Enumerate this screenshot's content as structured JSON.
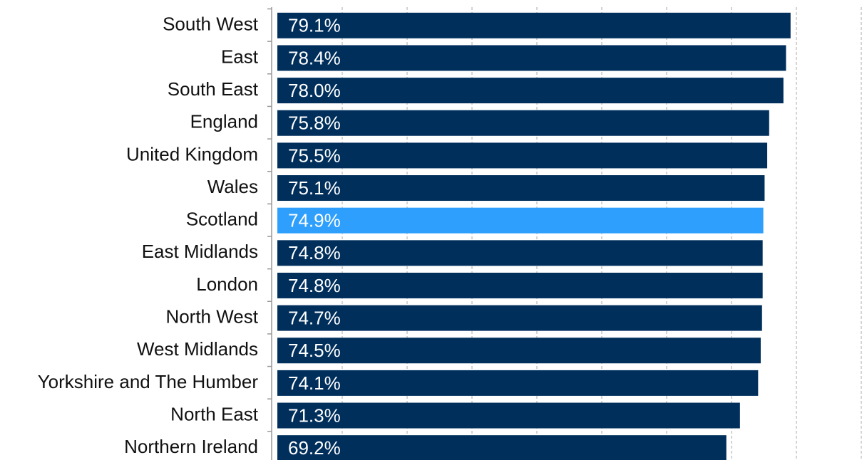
{
  "chart_data": {
    "type": "hbar",
    "categories": [
      "South West",
      "East",
      "South East",
      "England",
      "United Kingdom",
      "Wales",
      "Scotland",
      "East Midlands",
      "London",
      "North West",
      "West Midlands",
      "Yorkshire and The Humber",
      "North East",
      "Northern Ireland"
    ],
    "values": [
      79.1,
      78.4,
      78.0,
      75.8,
      75.5,
      75.1,
      74.9,
      74.8,
      74.8,
      74.7,
      74.5,
      74.1,
      71.3,
      69.2
    ],
    "value_labels": [
      "79.1%",
      "78.4%",
      "78.0%",
      "75.8%",
      "75.5%",
      "75.1%",
      "74.9%",
      "74.8%",
      "74.8%",
      "74.7%",
      "74.5%",
      "74.1%",
      "71.3%",
      "69.2%"
    ],
    "colors": [
      "#002f5c",
      "#002f5c",
      "#002f5c",
      "#002f5c",
      "#002f5c",
      "#002f5c",
      "#2e9ffd",
      "#002f5c",
      "#002f5c",
      "#002f5c",
      "#002f5c",
      "#002f5c",
      "#002f5c",
      "#002f5c"
    ],
    "xlim": [
      0,
      90
    ],
    "xticks": [
      10,
      20,
      30,
      40,
      50,
      60,
      70,
      80,
      90
    ],
    "grid": true
  }
}
